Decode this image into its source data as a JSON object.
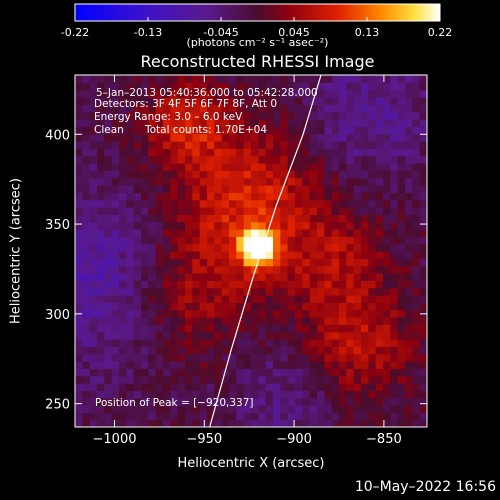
{
  "colorbar": {
    "tick_labels": [
      "-0.22",
      "-0.13",
      "-0.045",
      "0.045",
      "0.13",
      "0.22"
    ],
    "range": [
      -0.22,
      0.22
    ],
    "units_label": "(photons cm⁻² s⁻¹ asec⁻²)",
    "colormap": "blue-purple-red-yellow-white"
  },
  "chart_data": {
    "type": "heatmap",
    "title": "Reconstructed RHESSI Image",
    "xlabel": "Heliocentric X (arcsec)",
    "ylabel": "Heliocentric Y (arcsec)",
    "xlim": [
      -1022,
      -826
    ],
    "ylim": [
      237,
      433
    ],
    "x_ticks": [
      -1000,
      -950,
      -900,
      -850
    ],
    "x_tick_labels": [
      "−1000",
      "−950",
      "−900",
      "−850"
    ],
    "y_ticks": [
      250,
      300,
      350,
      400
    ],
    "y_tick_labels": [
      "250",
      "300",
      "350",
      "400"
    ],
    "peak": [
      -920,
      337
    ],
    "limb_curve": [
      [
        -947,
        237
      ],
      [
        -935,
        280
      ],
      [
        -923,
        320
      ],
      [
        -910,
        360
      ],
      [
        -895,
        400
      ],
      [
        -885,
        433
      ]
    ],
    "annotations": {
      "time_range": "5–Jan–2013 05:40:36.000 to 05:42:28.000",
      "detectors": "Detectors: 3F 4F 5F 6F 7F 8F, Att 0",
      "energy_range": "Energy Range: 3.0 – 6.0 keV",
      "clean": "Clean",
      "total_counts": "Total counts: 1.70E+04",
      "peak_position": "Position of Peak = [−920,337]"
    }
  },
  "footer": {
    "date": "10–May–2022 16:56"
  }
}
